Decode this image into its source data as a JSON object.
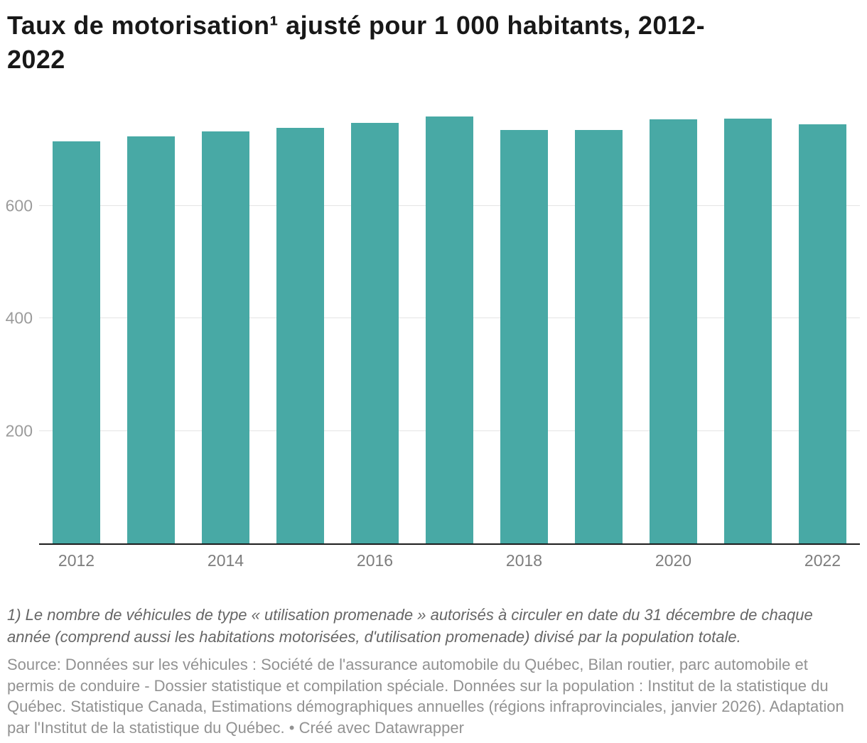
{
  "title": "Taux de motorisation¹ ajusté pour 1 000 habitants, 2012-2022",
  "footnote": "1) Le nombre de véhicules de type « utilisation promenade » autorisés à circuler en date du 31 décembre de chaque année (comprend aussi les habitations motorisées, d'utilisation promenade) divisé par la population totale.",
  "source": "Source: Données sur les véhicules : Société de l'assurance automobile du Québec, Bilan routier, parc automobile et permis de conduire - Dossier statistique et compilation spéciale. Données sur la population : Institut de la statistique du Québec. Statistique Canada, Estimations démographiques annuelles (régions infraprovinciales, janvier 2026). Adaptation par l'Institut de la statistique du Québec. • Créé avec Datawrapper",
  "chart_data": {
    "type": "bar",
    "title": "Taux de motorisation¹ ajusté pour 1 000 habitants, 2012-2022",
    "categories": [
      "2012",
      "2013",
      "2014",
      "2015",
      "2016",
      "2017",
      "2018",
      "2019",
      "2020",
      "2021",
      "2022"
    ],
    "values": [
      715,
      723,
      732,
      738,
      747,
      758,
      735,
      735,
      754,
      755,
      745
    ],
    "x_tick_labels": [
      "2012",
      "2014",
      "2016",
      "2018",
      "2020",
      "2022"
    ],
    "y_ticks": [
      200,
      400,
      600
    ],
    "ylim": [
      0,
      780
    ],
    "xlabel": "",
    "ylabel": "",
    "grid": true,
    "legend_position": "none",
    "bar_color": "#48a9a5",
    "grid_color": "#e4e4e4",
    "axis_color": "#1d1d1d",
    "tick_label_color": "#9b9b9b"
  }
}
